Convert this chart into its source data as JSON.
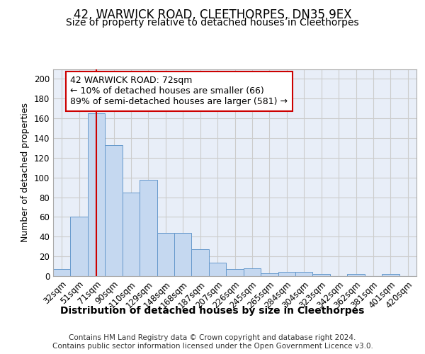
{
  "title_line1": "42, WARWICK ROAD, CLEETHORPES, DN35 9EX",
  "title_line2": "Size of property relative to detached houses in Cleethorpes",
  "xlabel": "Distribution of detached houses by size in Cleethorpes",
  "ylabel": "Number of detached properties",
  "categories": [
    "32sqm",
    "51sqm",
    "71sqm",
    "90sqm",
    "110sqm",
    "129sqm",
    "148sqm",
    "168sqm",
    "187sqm",
    "207sqm",
    "226sqm",
    "245sqm",
    "265sqm",
    "284sqm",
    "304sqm",
    "323sqm",
    "342sqm",
    "362sqm",
    "381sqm",
    "401sqm",
    "420sqm"
  ],
  "values": [
    7,
    60,
    165,
    133,
    85,
    98,
    44,
    44,
    27,
    14,
    7,
    8,
    3,
    4,
    4,
    2,
    0,
    2,
    0,
    2,
    0
  ],
  "bar_color": "#c5d8f0",
  "bar_edge_color": "#6699cc",
  "red_line_x": 2,
  "red_line_color": "#cc0000",
  "annotation_text": "42 WARWICK ROAD: 72sqm\n← 10% of detached houses are smaller (66)\n89% of semi-detached houses are larger (581) →",
  "annotation_box_color": "#ffffff",
  "annotation_box_edge_color": "#cc0000",
  "ylim": [
    0,
    210
  ],
  "yticks": [
    0,
    20,
    40,
    60,
    80,
    100,
    120,
    140,
    160,
    180,
    200
  ],
  "grid_color": "#cccccc",
  "background_color": "#e8eef8",
  "footer_line1": "Contains HM Land Registry data © Crown copyright and database right 2024.",
  "footer_line2": "Contains public sector information licensed under the Open Government Licence v3.0.",
  "title_fontsize": 12,
  "subtitle_fontsize": 10,
  "tick_fontsize": 8.5,
  "ylabel_fontsize": 9,
  "xlabel_fontsize": 10,
  "annotation_fontsize": 9
}
